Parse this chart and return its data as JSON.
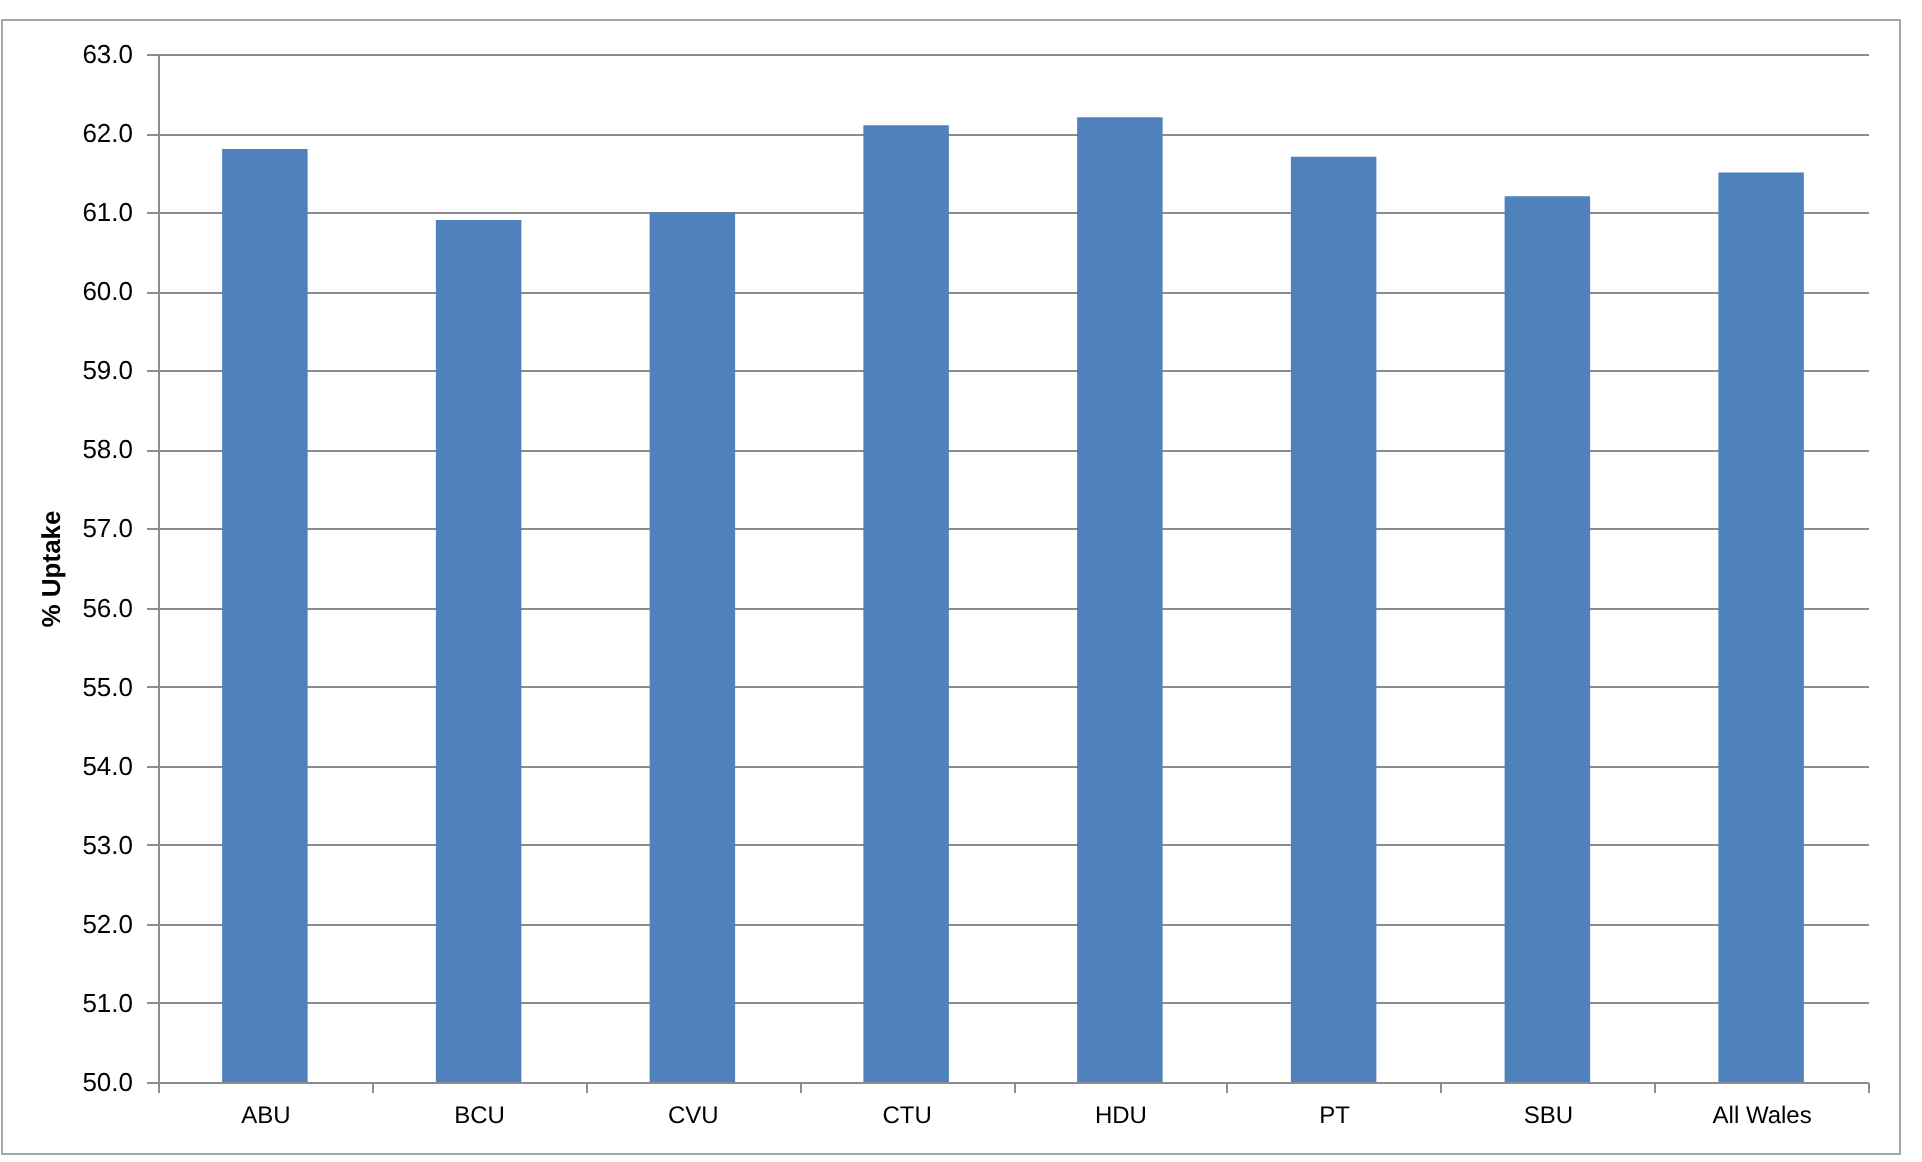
{
  "chart_data": {
    "type": "bar",
    "ylabel": "% Uptake",
    "categories": [
      "ABU",
      "BCU",
      "CVU",
      "CTU",
      "HDU",
      "PT",
      "SBU",
      "All Wales"
    ],
    "values": [
      61.8,
      60.9,
      61.0,
      62.1,
      62.2,
      61.7,
      61.2,
      61.5
    ],
    "color": "#4f81bd",
    "ylim": [
      50,
      63
    ],
    "yticks": [
      {
        "value": 50,
        "label": "50.0"
      },
      {
        "value": 51,
        "label": "51.0"
      },
      {
        "value": 52,
        "label": "52.0"
      },
      {
        "value": 53,
        "label": "53.0"
      },
      {
        "value": 54,
        "label": "54.0"
      },
      {
        "value": 55,
        "label": "55.0"
      },
      {
        "value": 56,
        "label": "56.0"
      },
      {
        "value": 57,
        "label": "57.0"
      },
      {
        "value": 58,
        "label": "58.0"
      },
      {
        "value": 59,
        "label": "59.0"
      },
      {
        "value": 60,
        "label": "60.0"
      },
      {
        "value": 61,
        "label": "61.0"
      },
      {
        "value": 62,
        "label": "62.0"
      },
      {
        "value": 63,
        "label": "63.0"
      }
    ],
    "grid": "y"
  }
}
